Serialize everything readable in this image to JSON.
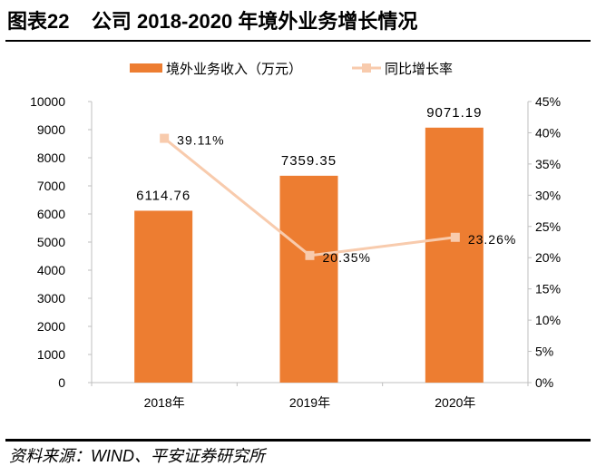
{
  "header": {
    "title": "图表22    公司 2018-2020 年境外业务增长情况"
  },
  "footer": {
    "source": "资料来源：WIND、平安证券研究所"
  },
  "chart_data": {
    "type": "bar+line",
    "categories": [
      "2018年",
      "2019年",
      "2020年"
    ],
    "series": [
      {
        "name": "境外业务收入（万元）",
        "type": "bar",
        "axis": "left",
        "color": "#ED7D31",
        "values": [
          6114.76,
          7359.35,
          9071.19
        ],
        "labels": [
          "6114.76",
          "7359.35",
          "9071.19"
        ]
      },
      {
        "name": "同比增长率",
        "type": "line",
        "axis": "right",
        "color": "#F8CBAD",
        "values": [
          39.11,
          20.35,
          23.26
        ],
        "labels": [
          "39.11%",
          "20.35%",
          "23.26%"
        ]
      }
    ],
    "y_left": {
      "range": [
        0,
        10000
      ],
      "ticks": [
        "0",
        "1000",
        "2000",
        "3000",
        "4000",
        "5000",
        "6000",
        "7000",
        "8000",
        "9000",
        "10000"
      ]
    },
    "y_right": {
      "range": [
        0,
        45
      ],
      "ticks": [
        "0%",
        "5%",
        "10%",
        "15%",
        "20%",
        "25%",
        "30%",
        "35%",
        "40%",
        "45%"
      ]
    },
    "legend": "top-center",
    "grid": false
  }
}
